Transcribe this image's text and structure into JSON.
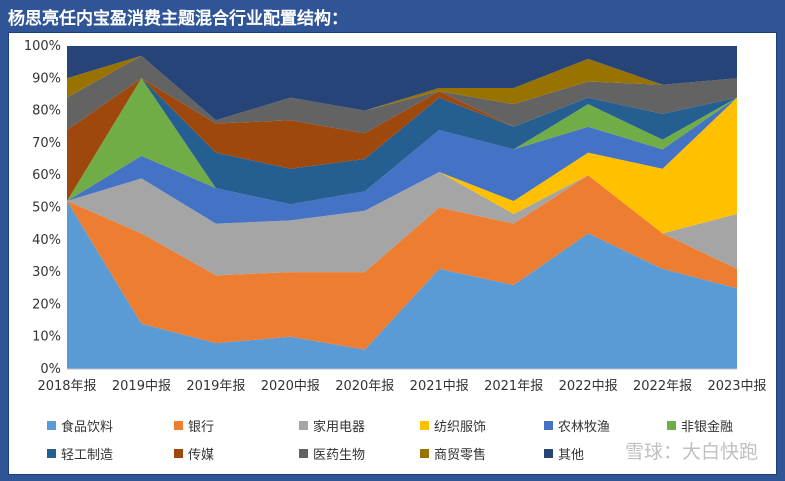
{
  "title": "杨思亮任内宝盈消费主题混合行业配置结构：",
  "watermark": "雪球：大白快跑",
  "chart_data": {
    "type": "area",
    "stacked": true,
    "categories": [
      "2018年报",
      "2019中报",
      "2019年报",
      "2020中报",
      "2020年报",
      "2021中报",
      "2021年报",
      "2022中报",
      "2022年报",
      "2023中报"
    ],
    "ylim": [
      0,
      100
    ],
    "yticks": [
      "0%",
      "10%",
      "20%",
      "30%",
      "40%",
      "50%",
      "60%",
      "70%",
      "80%",
      "90%",
      "100%"
    ],
    "grid": false,
    "legend_position": "bottom",
    "series": [
      {
        "name": "食品饮料",
        "color": "#5b9bd5",
        "values": [
          52,
          14,
          8,
          10,
          6,
          31,
          26,
          42,
          31,
          25
        ]
      },
      {
        "name": "银行",
        "color": "#ed7d31",
        "values": [
          0,
          28,
          21,
          20,
          24,
          19,
          19,
          18,
          11,
          6
        ]
      },
      {
        "name": "家用电器",
        "color": "#a5a5a5",
        "values": [
          0,
          17,
          16,
          16,
          19,
          11,
          3,
          0,
          0,
          17
        ]
      },
      {
        "name": "纺织服饰",
        "color": "#ffc000",
        "values": [
          0,
          0,
          0,
          0,
          0,
          0,
          4,
          7,
          20,
          36
        ]
      },
      {
        "name": "农林牧渔",
        "color": "#4472c4",
        "values": [
          0,
          7,
          11,
          5,
          6,
          13,
          16,
          8,
          6,
          0
        ]
      },
      {
        "name": "非银金融",
        "color": "#70ad47",
        "values": [
          0,
          24,
          0,
          0,
          0,
          0,
          0,
          7,
          3,
          0
        ]
      },
      {
        "name": "轻工制造",
        "color": "#255e91",
        "values": [
          0,
          0,
          11,
          11,
          10,
          10,
          7,
          2,
          8,
          0
        ]
      },
      {
        "name": "传媒",
        "color": "#9e480e",
        "values": [
          22,
          0,
          9,
          15,
          8,
          2,
          0,
          0,
          0,
          0
        ]
      },
      {
        "name": "医药生物",
        "color": "#636363",
        "values": [
          10,
          7,
          1,
          7,
          7,
          0,
          7,
          5,
          9,
          6
        ]
      },
      {
        "name": "商贸零售",
        "color": "#997300",
        "values": [
          6,
          0,
          0,
          0,
          0,
          1,
          5,
          7,
          0,
          0
        ]
      },
      {
        "name": "其他",
        "color": "#264478",
        "values": [
          10,
          3,
          23,
          16,
          20,
          13,
          13,
          4,
          12,
          10
        ]
      }
    ]
  }
}
